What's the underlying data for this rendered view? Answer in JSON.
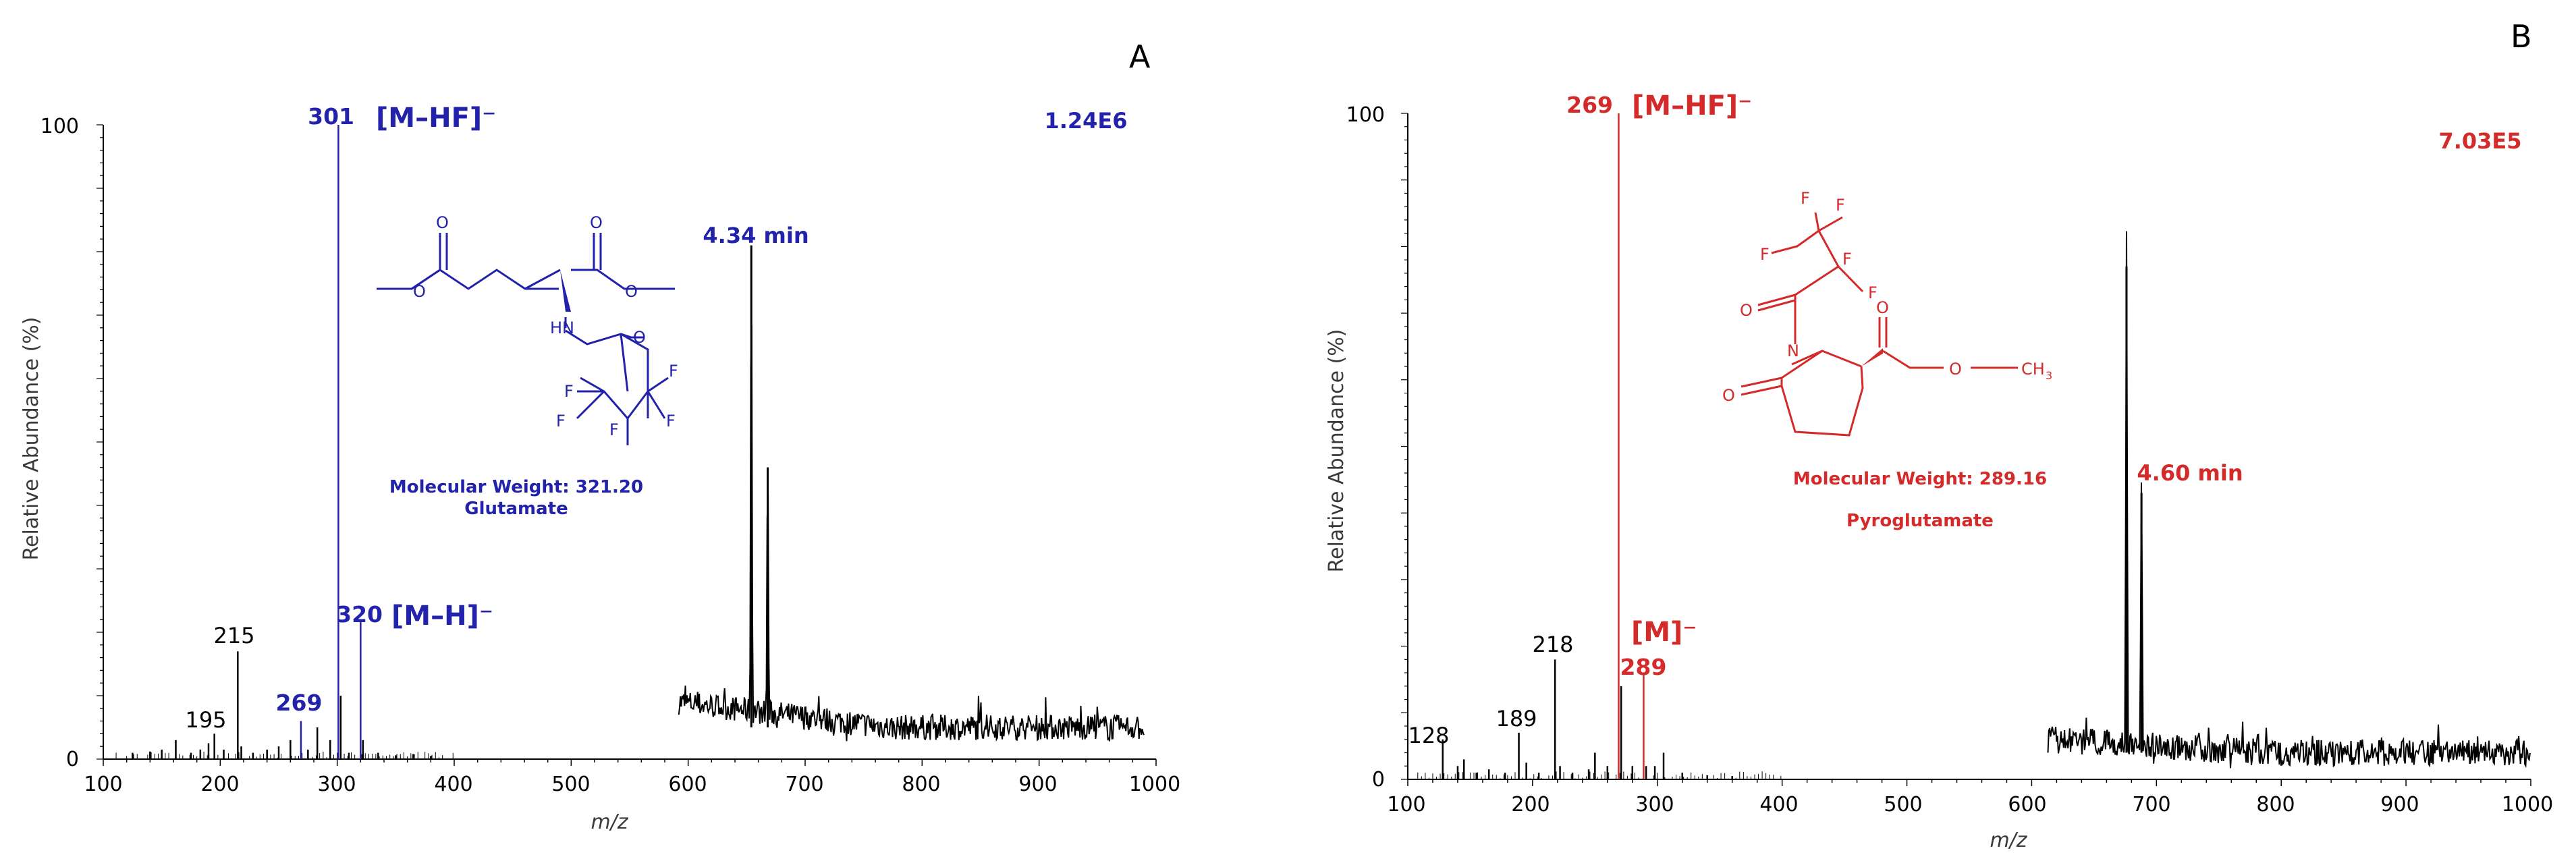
{
  "colors": {
    "blue": "#2222aa",
    "red": "#d42a2a",
    "black": "#000000",
    "axis": "#000000"
  },
  "chart_data": [
    {
      "type": "bar",
      "panel_label": "A",
      "accent": "#2222aa",
      "xlabel": "m/z",
      "ylabel": "Relative Abundance (%)",
      "xlim": [
        100,
        1000
      ],
      "ylim": [
        0,
        100
      ],
      "x_ticks": [
        "100",
        "200",
        "300",
        "400",
        "500",
        "600",
        "700",
        "800",
        "900",
        "1000"
      ],
      "y_ticks": [
        "0",
        "100"
      ],
      "intensity": "1.24E6",
      "retention_time": "4.34 min",
      "molecule_name": "Glutamate",
      "molecular_weight": "Molecular Weight: 321.20",
      "peaks": [
        {
          "mz": 125,
          "abundance": 1
        },
        {
          "mz": 140,
          "abundance": 1.2
        },
        {
          "mz": 150,
          "abundance": 1.5
        },
        {
          "mz": 162,
          "abundance": 3
        },
        {
          "mz": 175,
          "abundance": 1
        },
        {
          "mz": 183,
          "abundance": 1.5
        },
        {
          "mz": 190,
          "abundance": 2.5
        },
        {
          "mz": 195,
          "abundance": 4
        },
        {
          "mz": 203,
          "abundance": 1.5
        },
        {
          "mz": 215,
          "abundance": 17
        },
        {
          "mz": 218,
          "abundance": 2
        },
        {
          "mz": 228,
          "abundance": 1
        },
        {
          "mz": 240,
          "abundance": 1.5
        },
        {
          "mz": 250,
          "abundance": 2
        },
        {
          "mz": 260,
          "abundance": 3
        },
        {
          "mz": 269,
          "abundance": 6
        },
        {
          "mz": 275,
          "abundance": 1.5
        },
        {
          "mz": 283,
          "abundance": 5
        },
        {
          "mz": 294,
          "abundance": 3
        },
        {
          "mz": 301,
          "abundance": 100
        },
        {
          "mz": 303,
          "abundance": 10
        },
        {
          "mz": 310,
          "abundance": 1
        },
        {
          "mz": 320,
          "abundance": 22
        },
        {
          "mz": 322,
          "abundance": 3
        },
        {
          "mz": 335,
          "abundance": 1
        },
        {
          "mz": 350,
          "abundance": 0.6
        },
        {
          "mz": 365,
          "abundance": 0.8
        },
        {
          "mz": 380,
          "abundance": 0.5
        }
      ],
      "chromatogram": {
        "x_range": [
          592,
          990
        ],
        "baseline": 5,
        "start_level": 9,
        "spikes": [
          {
            "mz": 654,
            "height": 81
          },
          {
            "mz": 668,
            "height": 46
          }
        ]
      },
      "peak_labels": [
        {
          "mz": 301,
          "text": "301",
          "colored": true
        },
        {
          "mz": 320,
          "text": "320",
          "colored": true
        },
        {
          "mz": 269,
          "text": "269",
          "colored": true
        },
        {
          "mz": 215,
          "text": "215",
          "colored": false
        },
        {
          "mz": 195,
          "text": "195",
          "colored": false
        }
      ],
      "ion_labels": [
        "[M–HF]⁻",
        "[M–H]⁻"
      ]
    },
    {
      "type": "bar",
      "panel_label": "B",
      "accent": "#d42a2a",
      "xlabel": "m/z",
      "ylabel": "Relative Abundance (%)",
      "xlim": [
        100,
        1000
      ],
      "ylim": [
        0,
        100
      ],
      "x_ticks": [
        "100",
        "200",
        "300",
        "400",
        "500",
        "600",
        "700",
        "800",
        "900",
        "1000"
      ],
      "y_ticks": [
        "0",
        "100"
      ],
      "intensity": "7.03E5",
      "retention_time": "4.60 min",
      "molecule_name": "Pyroglutamate",
      "molecular_weight": "Molecular Weight: 289.16",
      "peaks": [
        {
          "mz": 128,
          "abundance": 6
        },
        {
          "mz": 140,
          "abundance": 2
        },
        {
          "mz": 145,
          "abundance": 3
        },
        {
          "mz": 155,
          "abundance": 1
        },
        {
          "mz": 165,
          "abundance": 1.5
        },
        {
          "mz": 178,
          "abundance": 1
        },
        {
          "mz": 189,
          "abundance": 7
        },
        {
          "mz": 195,
          "abundance": 2.5
        },
        {
          "mz": 205,
          "abundance": 1
        },
        {
          "mz": 218,
          "abundance": 18
        },
        {
          "mz": 222,
          "abundance": 2
        },
        {
          "mz": 232,
          "abundance": 1
        },
        {
          "mz": 245,
          "abundance": 1.5
        },
        {
          "mz": 250,
          "abundance": 4
        },
        {
          "mz": 260,
          "abundance": 2
        },
        {
          "mz": 269,
          "abundance": 100
        },
        {
          "mz": 271,
          "abundance": 14
        },
        {
          "mz": 280,
          "abundance": 2
        },
        {
          "mz": 289,
          "abundance": 16
        },
        {
          "mz": 291,
          "abundance": 2
        },
        {
          "mz": 298,
          "abundance": 2
        },
        {
          "mz": 305,
          "abundance": 4
        },
        {
          "mz": 320,
          "abundance": 1
        },
        {
          "mz": 340,
          "abundance": 0.6
        },
        {
          "mz": 360,
          "abundance": 0.5
        }
      ],
      "chromatogram": {
        "x_range": [
          613,
          1000
        ],
        "baseline": 4,
        "start_level": 6,
        "spikes": [
          {
            "mz": 676,
            "height": 77
          },
          {
            "mz": 688,
            "height": 43
          }
        ]
      },
      "peak_labels": [
        {
          "mz": 269,
          "text": "269",
          "colored": true
        },
        {
          "mz": 289,
          "text": "289",
          "colored": true
        },
        {
          "mz": 218,
          "text": "218",
          "colored": false
        },
        {
          "mz": 189,
          "text": "189",
          "colored": false
        },
        {
          "mz": 128,
          "text": "128",
          "colored": false
        }
      ],
      "ion_labels": [
        "[M–HF]⁻",
        "[M]⁻"
      ]
    }
  ]
}
